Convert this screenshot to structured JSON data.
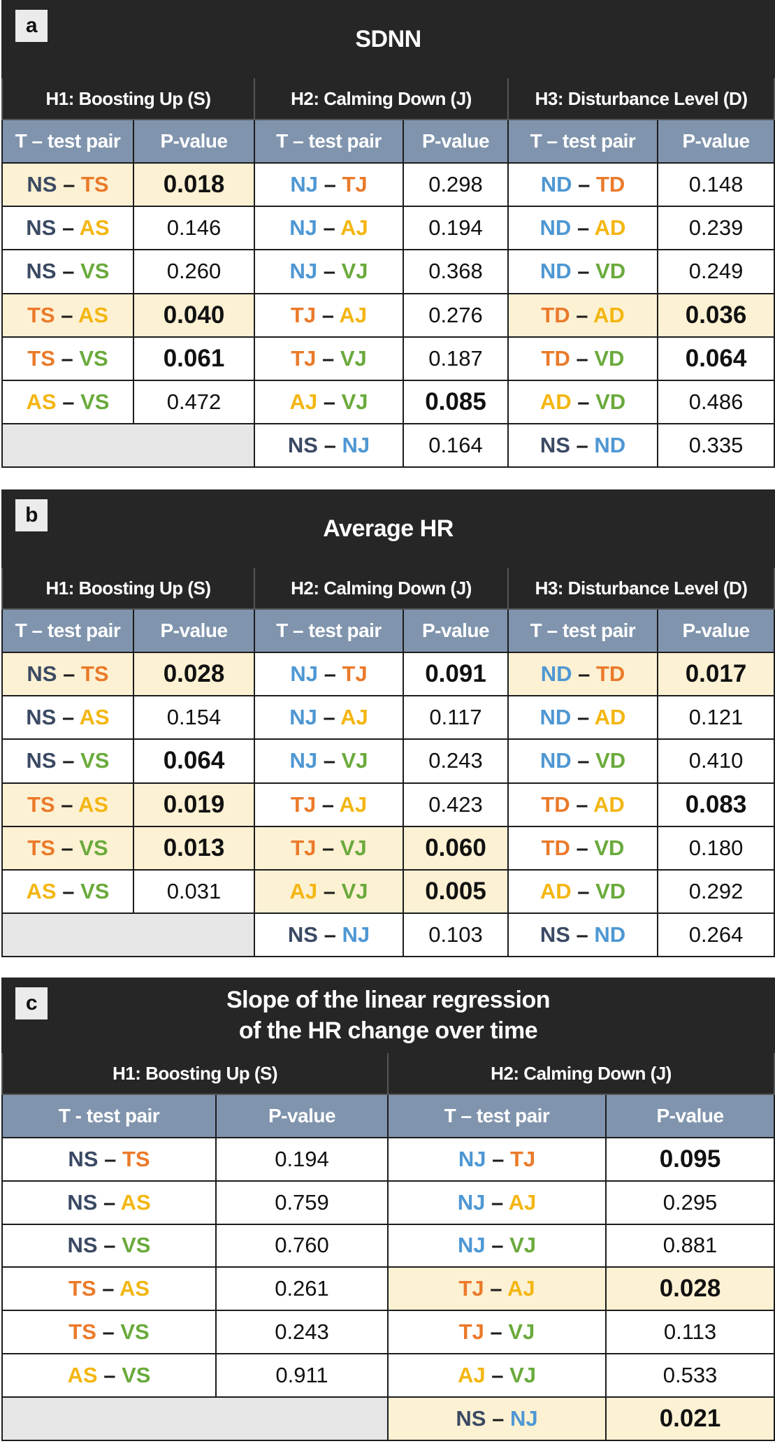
{
  "colors": {
    "N_S": "#3b4a63",
    "T": "#ea7a2a",
    "A": "#f3b612",
    "V": "#6aaa3c",
    "N_J_D": "#4e97d3",
    "highlight": "#fdf1d3",
    "header": "#262626",
    "subheader": "#8094ad"
  },
  "panels": [
    {
      "letter": "a",
      "title": [
        "SDNN"
      ],
      "groups": [
        "H1: Boosting Up (S)",
        "H2: Calming Down (J)",
        "H3: Disturbance Level (D)"
      ],
      "col_pair": "T – test pair",
      "col_p": "P-value",
      "rows": [
        [
          {
            "a": "NS",
            "b": "TS",
            "p": "0.018",
            "bold": true,
            "hl": true
          },
          {
            "a": "NJ",
            "b": "TJ",
            "p": "0.298"
          },
          {
            "a": "ND",
            "b": "TD",
            "p": "0.148"
          }
        ],
        [
          {
            "a": "NS",
            "b": "AS",
            "p": "0.146"
          },
          {
            "a": "NJ",
            "b": "AJ",
            "p": "0.194"
          },
          {
            "a": "ND",
            "b": "AD",
            "p": "0.239"
          }
        ],
        [
          {
            "a": "NS",
            "b": "VS",
            "p": "0.260"
          },
          {
            "a": "NJ",
            "b": "VJ",
            "p": "0.368"
          },
          {
            "a": "ND",
            "b": "VD",
            "p": "0.249"
          }
        ],
        [
          {
            "a": "TS",
            "b": "AS",
            "p": "0.040",
            "bold": true,
            "hl": true
          },
          {
            "a": "TJ",
            "b": "AJ",
            "p": "0.276"
          },
          {
            "a": "TD",
            "b": "AD",
            "p": "0.036",
            "bold": true,
            "hl": true
          }
        ],
        [
          {
            "a": "TS",
            "b": "VS",
            "p": "0.061",
            "bold": true
          },
          {
            "a": "TJ",
            "b": "VJ",
            "p": "0.187"
          },
          {
            "a": "TD",
            "b": "VD",
            "p": "0.064",
            "bold": true
          }
        ],
        [
          {
            "a": "AS",
            "b": "VS",
            "p": "0.472"
          },
          {
            "a": "AJ",
            "b": "VJ",
            "p": "0.085",
            "bold": true
          },
          {
            "a": "AD",
            "b": "VD",
            "p": "0.486"
          }
        ],
        [
          null,
          {
            "a": "NS",
            "b": "NJ",
            "p": "0.164"
          },
          {
            "a": "NS",
            "b": "ND",
            "p": "0.335"
          }
        ]
      ]
    },
    {
      "letter": "b",
      "title": [
        "Average HR"
      ],
      "groups": [
        "H1: Boosting Up (S)",
        "H2: Calming Down (J)",
        "H3: Disturbance Level (D)"
      ],
      "col_pair": "T – test pair",
      "col_p": "P-value",
      "rows": [
        [
          {
            "a": "NS",
            "b": "TS",
            "p": "0.028",
            "bold": true,
            "hl": true
          },
          {
            "a": "NJ",
            "b": "TJ",
            "p": "0.091",
            "bold": true
          },
          {
            "a": "ND",
            "b": "TD",
            "p": "0.017",
            "bold": true,
            "hl": true
          }
        ],
        [
          {
            "a": "NS",
            "b": "AS",
            "p": "0.154"
          },
          {
            "a": "NJ",
            "b": "AJ",
            "p": "0.117"
          },
          {
            "a": "ND",
            "b": "AD",
            "p": "0.121"
          }
        ],
        [
          {
            "a": "NS",
            "b": "VS",
            "p": "0.064",
            "bold": true
          },
          {
            "a": "NJ",
            "b": "VJ",
            "p": "0.243"
          },
          {
            "a": "ND",
            "b": "VD",
            "p": "0.410"
          }
        ],
        [
          {
            "a": "TS",
            "b": "AS",
            "p": "0.019",
            "bold": true,
            "hl": true
          },
          {
            "a": "TJ",
            "b": "AJ",
            "p": "0.423"
          },
          {
            "a": "TD",
            "b": "AD",
            "p": "0.083",
            "bold": true
          }
        ],
        [
          {
            "a": "TS",
            "b": "VS",
            "p": "0.013",
            "bold": true,
            "hl": true
          },
          {
            "a": "TJ",
            "b": "VJ",
            "p": "0.060",
            "bold": true,
            "hl": true
          },
          {
            "a": "TD",
            "b": "VD",
            "p": "0.180"
          }
        ],
        [
          {
            "a": "AS",
            "b": "VS",
            "p": "0.031"
          },
          {
            "a": "AJ",
            "b": "VJ",
            "p": "0.005",
            "bold": true,
            "hl": true
          },
          {
            "a": "AD",
            "b": "VD",
            "p": "0.292"
          }
        ],
        [
          null,
          {
            "a": "NS",
            "b": "NJ",
            "p": "0.103"
          },
          {
            "a": "NS",
            "b": "ND",
            "p": "0.264"
          }
        ]
      ]
    },
    {
      "letter": "c",
      "title": [
        "Slope of the linear regression",
        "of the HR change over time"
      ],
      "groups": [
        "H1: Boosting Up (S)",
        "H2: Calming Down (J)"
      ],
      "col_pair_list": [
        "T - test pair",
        "T – test pair"
      ],
      "col_p": "P-value",
      "rows": [
        [
          {
            "a": "NS",
            "b": "TS",
            "p": "0.194"
          },
          {
            "a": "NJ",
            "b": "TJ",
            "p": "0.095",
            "bold": true
          }
        ],
        [
          {
            "a": "NS",
            "b": "AS",
            "p": "0.759"
          },
          {
            "a": "NJ",
            "b": "AJ",
            "p": "0.295"
          }
        ],
        [
          {
            "a": "NS",
            "b": "VS",
            "p": "0.760"
          },
          {
            "a": "NJ",
            "b": "VJ",
            "p": "0.881"
          }
        ],
        [
          {
            "a": "TS",
            "b": "AS",
            "p": "0.261"
          },
          {
            "a": "TJ",
            "b": "AJ",
            "p": "0.028",
            "bold": true,
            "hl": true
          }
        ],
        [
          {
            "a": "TS",
            "b": "VS",
            "p": "0.243"
          },
          {
            "a": "TJ",
            "b": "VJ",
            "p": "0.113"
          }
        ],
        [
          {
            "a": "AS",
            "b": "VS",
            "p": "0.911"
          },
          {
            "a": "AJ",
            "b": "VJ",
            "p": "0.533"
          }
        ],
        [
          null,
          {
            "a": "NS",
            "b": "NJ",
            "p": "0.021",
            "bold": true,
            "hl": true
          }
        ]
      ]
    }
  ]
}
